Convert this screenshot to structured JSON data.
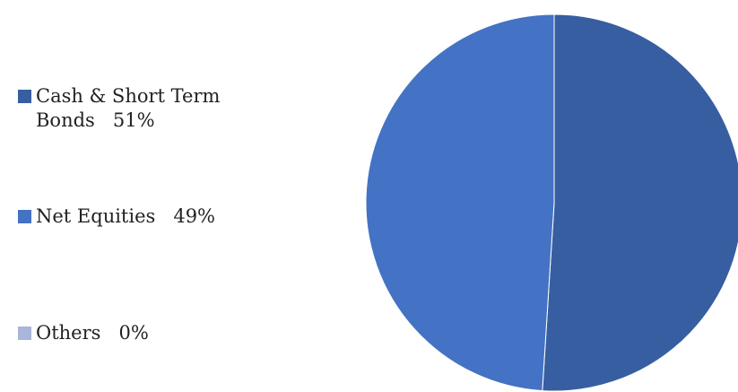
{
  "chart_data": {
    "type": "pie",
    "series": [
      {
        "label": "Cash & Short Term\nBonds",
        "value": 51,
        "value_label": "51%",
        "color": "#375ea1"
      },
      {
        "label": "Net Equities",
        "value": 49,
        "value_label": "49%",
        "color": "#4472c4"
      },
      {
        "label": "Others",
        "value": 0,
        "value_label": "0%",
        "color": "#a7b6d9"
      }
    ],
    "legend_position": "left",
    "start_angle_deg": 0,
    "direction": "clockwise"
  }
}
